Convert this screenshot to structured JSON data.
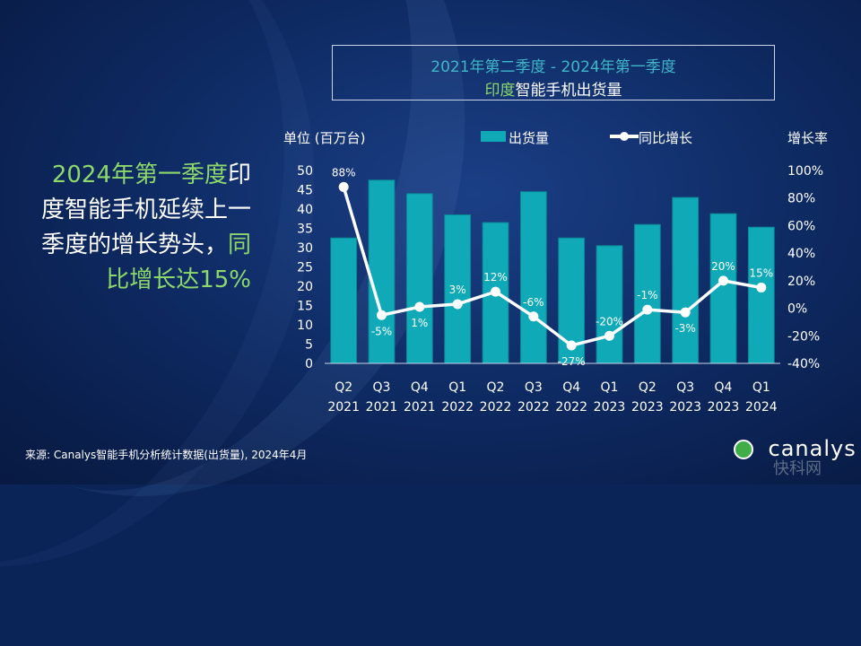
{
  "title": {
    "line1": "2021年第二季度 -  2024年第一季度",
    "line2_highlight": "印度",
    "line2_rest": "智能手机出货量"
  },
  "headline": {
    "part1_green": "2024年第一季度",
    "part2_white": "印度智能手机延续上一季度的增长势头，",
    "part3_green": "同比增长达15%"
  },
  "source": "来源: Canalys智能手机分析统计数据(出货量), 2024年4月",
  "logo": "canalys",
  "watermark": "快科网",
  "colors": {
    "bar": "#10a9b8",
    "bar_edge": "#0b8693",
    "line": "#ffffff",
    "green": "#8ed86b",
    "teal_title": "#3fb6c9"
  },
  "chart_data": {
    "type": "bar",
    "unit_left": "单位 (百万台)",
    "unit_right": "增长率",
    "categories": [
      [
        "Q2",
        "2021"
      ],
      [
        "Q3",
        "2021"
      ],
      [
        "Q4",
        "2021"
      ],
      [
        "Q1",
        "2022"
      ],
      [
        "Q2",
        "2022"
      ],
      [
        "Q3",
        "2022"
      ],
      [
        "Q4",
        "2022"
      ],
      [
        "Q1",
        "2023"
      ],
      [
        "Q2",
        "2023"
      ],
      [
        "Q3",
        "2023"
      ],
      [
        "Q4",
        "2023"
      ],
      [
        "Q1",
        "2024"
      ]
    ],
    "series": [
      {
        "name": "出货量",
        "type": "bar",
        "axis": "left",
        "values": [
          32.5,
          47.5,
          44,
          38.5,
          36.5,
          44.5,
          32.5,
          30.5,
          36,
          43,
          38.8,
          35.3
        ]
      },
      {
        "name": "同比增长",
        "type": "line",
        "axis": "right",
        "values": [
          88,
          -5,
          1,
          3,
          12,
          -6,
          -27,
          -20,
          -1,
          -3,
          20,
          15
        ],
        "labels": [
          "88%",
          "-5%",
          "1%",
          "3%",
          "12%",
          "-6%",
          "-27%",
          "-20%",
          "-1%",
          "-3%",
          "20%",
          "15%"
        ]
      }
    ],
    "left_axis": {
      "ylim": [
        0,
        50
      ],
      "ticks": [
        "0",
        "5",
        "10",
        "15",
        "20",
        "25",
        "30",
        "35",
        "40",
        "45",
        "50"
      ]
    },
    "right_axis": {
      "ylim": [
        -40,
        100
      ],
      "ticks": [
        "-40%",
        "-20%",
        "0%",
        "20%",
        "40%",
        "60%",
        "80%",
        "100%"
      ]
    },
    "legend_position": "top"
  }
}
